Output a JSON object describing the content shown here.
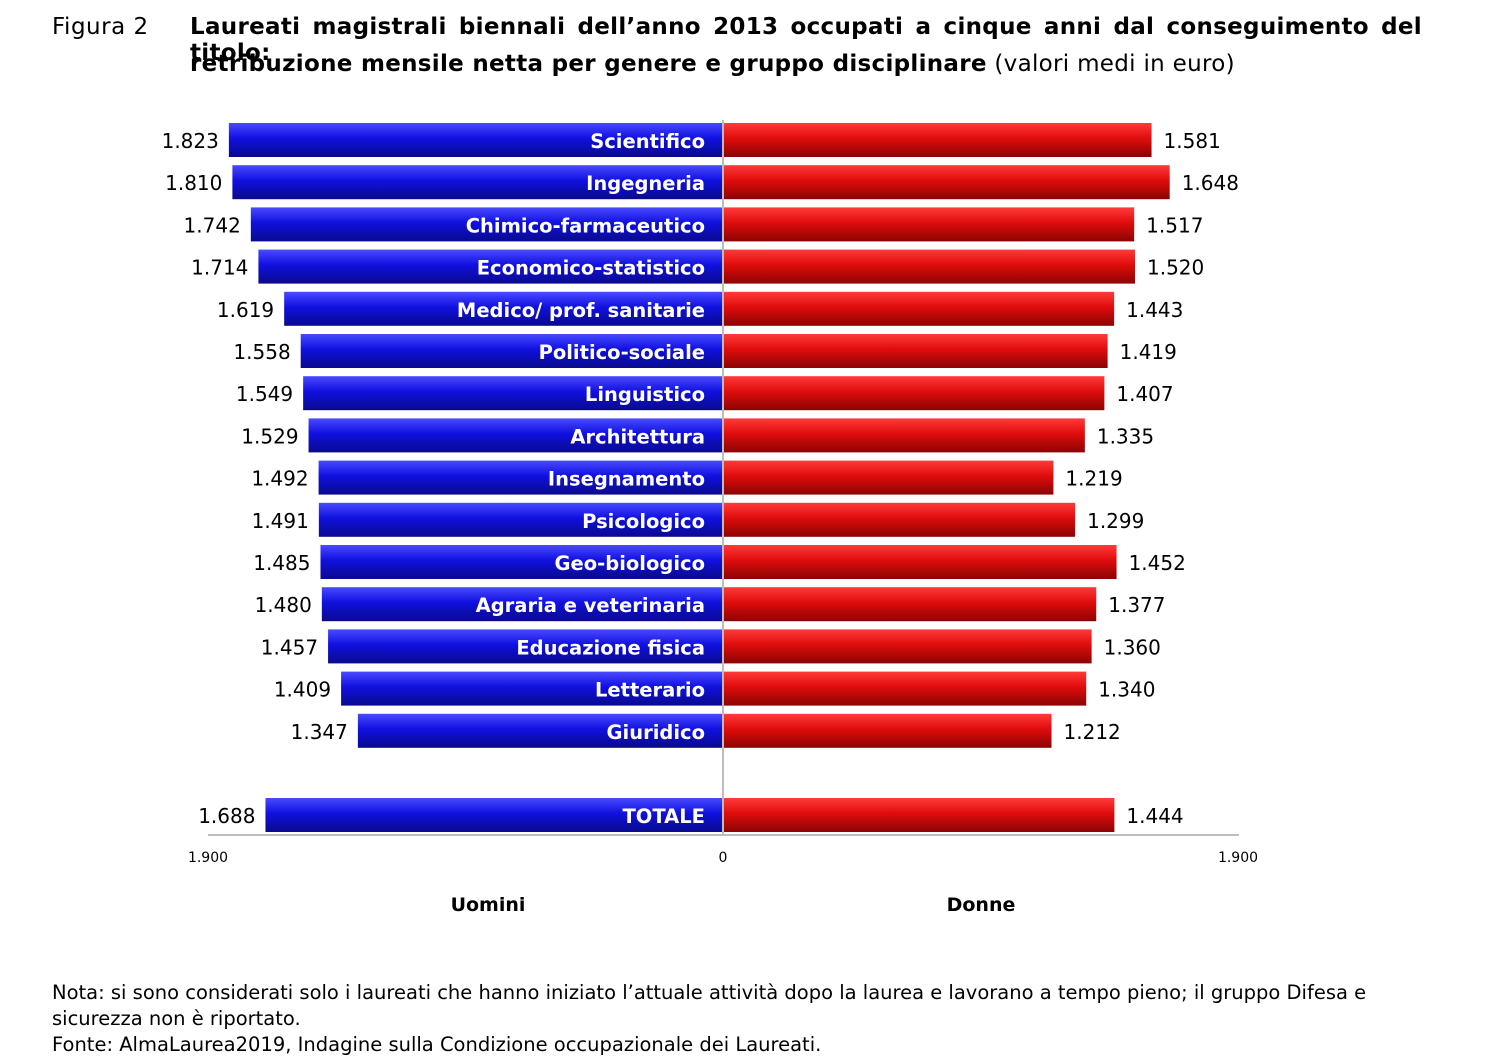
{
  "figure": {
    "label": "Figura 2",
    "title_bold": "Laureati magistrali biennali dell’anno 2013 occupati a cinque anni dal conseguimento del titolo: retribuzione mensile netta per genere e gruppo disciplinare",
    "title_bold_line1": "Laureati magistrali biennali dell’anno 2013 occupati a cinque anni dal conseguimento del titolo:",
    "title_bold_line2": "retribuzione mensile netta per genere e gruppo disciplinare",
    "title_suffix": " (valori medi in euro)"
  },
  "colors": {
    "uomini": "#1010d8",
    "donne": "#e01010",
    "axis": "#bdbdbd"
  },
  "chart_data": {
    "type": "bar",
    "orientation": "horizontal",
    "layout": "diverging",
    "categories": [
      "Scientifico",
      "Ingegneria",
      "Chimico-farmaceutico",
      "Economico-statistico",
      "Medico/ prof. sanitarie",
      "Politico-sociale",
      "Linguistico",
      "Architettura",
      "Insegnamento",
      "Psicologico",
      "Geo-biologico",
      "Agraria e veterinaria",
      "Educazione fisica",
      "Letterario",
      "Giuridico",
      "TOTALE"
    ],
    "series": [
      {
        "name": "Uomini",
        "side": "left",
        "values": [
          1823,
          1810,
          1742,
          1714,
          1619,
          1558,
          1549,
          1529,
          1492,
          1491,
          1485,
          1480,
          1457,
          1409,
          1347,
          1688
        ],
        "labels": [
          "1.823",
          "1.810",
          "1.742",
          "1.714",
          "1.619",
          "1.558",
          "1.549",
          "1.529",
          "1.492",
          "1.491",
          "1.485",
          "1.480",
          "1.457",
          "1.409",
          "1.347",
          "1.688"
        ]
      },
      {
        "name": "Donne",
        "side": "right",
        "values": [
          1581,
          1648,
          1517,
          1520,
          1443,
          1419,
          1407,
          1335,
          1219,
          1299,
          1452,
          1377,
          1360,
          1340,
          1212,
          1444
        ],
        "labels": [
          "1.581",
          "1.648",
          "1.517",
          "1.520",
          "1.443",
          "1.419",
          "1.407",
          "1.335",
          "1.219",
          "1.299",
          "1.452",
          "1.377",
          "1.360",
          "1.340",
          "1.212",
          "1.444"
        ]
      }
    ],
    "xlim": [
      -1900,
      1900
    ],
    "xtick_labels": [
      "1.900",
      "0",
      "1.900"
    ],
    "xtick_values": [
      -1900,
      0,
      1900
    ],
    "grid": false,
    "legend": "none"
  },
  "note": {
    "text": "Nota: si sono considerati solo i laureati che hanno iniziato l’attuale attività dopo la laurea e lavorano a tempo pieno; il gruppo Difesa e sicurezza non è riportato.",
    "source": "Fonte: AlmaLaurea2019, Indagine sulla Condizione occupazionale dei Laureati."
  }
}
